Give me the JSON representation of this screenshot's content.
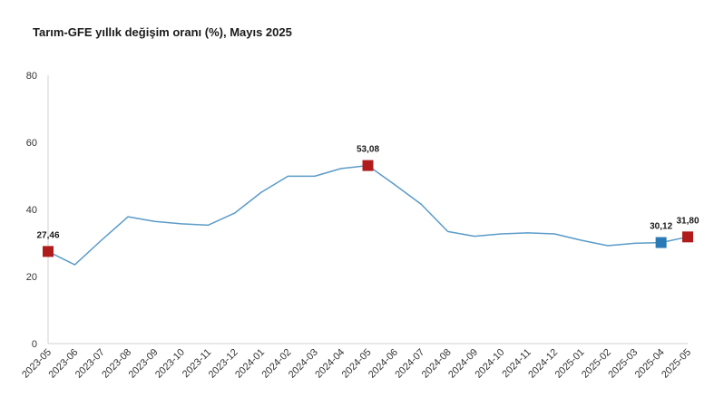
{
  "chart_data": {
    "type": "line",
    "title": "Tarım-GFE yıllık değişim oranı (%), Mayıs 2025",
    "categories": [
      "2023-05",
      "2023-06",
      "2023-07",
      "2023-08",
      "2023-09",
      "2023-10",
      "2023-11",
      "2023-12",
      "2024-01",
      "2024-02",
      "2024-03",
      "2024-04",
      "2024-05",
      "2024-06",
      "2024-07",
      "2024-08",
      "2024-09",
      "2024-10",
      "2024-11",
      "2024-12",
      "2025-01",
      "2025-02",
      "2025-03",
      "2025-04",
      "2025-05"
    ],
    "series": [
      {
        "values": [
          27.46,
          23.5,
          30.8,
          37.8,
          36.4,
          35.7,
          35.3,
          38.9,
          45.1,
          49.9,
          49.9,
          52.2,
          53.08,
          47.4,
          41.5,
          33.4,
          32.0,
          32.7,
          33.0,
          32.7,
          30.8,
          29.2,
          29.9,
          30.12,
          31.8
        ]
      }
    ],
    "highlighted_points": [
      {
        "category": "2023-05",
        "value": 27.46,
        "label": "27,46",
        "color": "#b01c1c"
      },
      {
        "category": "2024-05",
        "value": 53.08,
        "label": "53,08",
        "color": "#b01c1c"
      },
      {
        "category": "2025-04",
        "value": 30.12,
        "label": "30,12",
        "color": "#2a7ab8"
      },
      {
        "category": "2025-05",
        "value": 31.8,
        "label": "31,80",
        "color": "#b01c1c"
      }
    ],
    "y_ticks": [
      "0",
      "20",
      "40",
      "60",
      "80"
    ],
    "ylim": [
      0,
      80
    ],
    "line_color": "#5b9bc8",
    "grid": false
  }
}
